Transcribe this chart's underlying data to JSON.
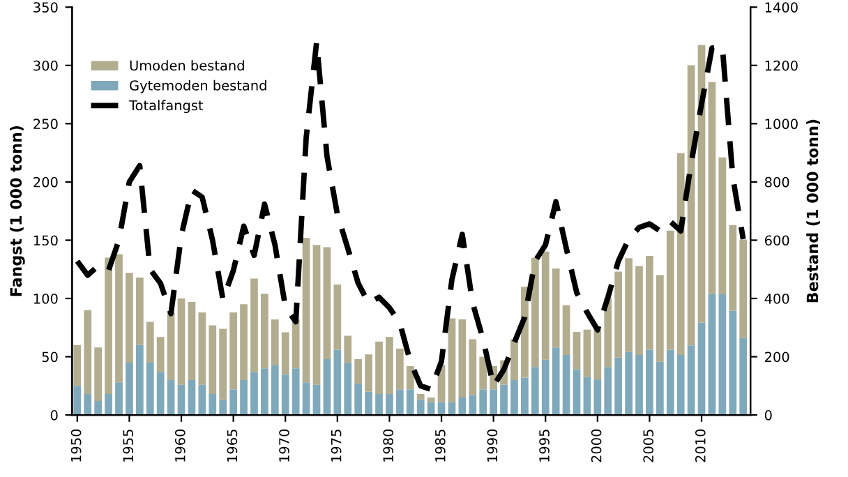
{
  "chart_data": {
    "type": "bar",
    "stacked": true,
    "ylabel": "Fangst (1 000 tonn)",
    "y2label": "Bestand (1 000 tonn)",
    "x": [
      1950,
      1951,
      1952,
      1953,
      1954,
      1955,
      1956,
      1957,
      1958,
      1959,
      1960,
      1961,
      1962,
      1963,
      1964,
      1965,
      1966,
      1967,
      1968,
      1969,
      1970,
      1971,
      1972,
      1973,
      1974,
      1975,
      1976,
      1977,
      1978,
      1979,
      1980,
      1981,
      1982,
      1983,
      1984,
      1985,
      1986,
      1987,
      1988,
      1989,
      1990,
      1991,
      1992,
      1993,
      1994,
      1995,
      1996,
      1997,
      1998,
      1999,
      2000,
      2001,
      2002,
      2003,
      2004,
      2005,
      2006,
      2007,
      2008,
      2009,
      2010,
      2011,
      2012,
      2013,
      2014
    ],
    "xlim": [
      1949.5,
      2014.7
    ],
    "xticks": [
      1950,
      1955,
      1960,
      1965,
      1970,
      1975,
      1980,
      1985,
      1990,
      1995,
      2000,
      2005,
      2010
    ],
    "ylim": [
      0,
      350
    ],
    "yticks": [
      0,
      50,
      100,
      150,
      200,
      250,
      300,
      350
    ],
    "y2lim": [
      0,
      1400
    ],
    "y2ticks": [
      0,
      200,
      400,
      600,
      800,
      1000,
      1200,
      1400
    ],
    "legend": "top left",
    "grid": false,
    "series": [
      {
        "name": "Gytemoden bestand",
        "color": "#7fa9ba",
        "axis": "y2",
        "values": [
          100,
          72,
          48,
          72,
          112,
          180,
          240,
          180,
          148,
          120,
          104,
          120,
          104,
          72,
          52,
          88,
          120,
          148,
          160,
          172,
          140,
          160,
          112,
          104,
          192,
          224,
          180,
          108,
          80,
          72,
          72,
          88,
          88,
          52,
          44,
          44,
          44,
          60,
          68,
          88,
          88,
          104,
          120,
          128,
          165,
          190,
          232,
          206,
          157,
          130,
          122,
          165,
          197,
          216,
          206,
          224,
          183,
          224,
          206,
          239,
          317,
          416,
          416,
          358,
          264
        ]
      },
      {
        "name": "Umoden bestand",
        "color": "#b2ad8f",
        "axis": "y2",
        "values": [
          140,
          288,
          184,
          468,
          440,
          308,
          232,
          140,
          120,
          232,
          296,
          268,
          248,
          236,
          244,
          264,
          260,
          320,
          256,
          156,
          144,
          168,
          496,
          480,
          384,
          224,
          92,
          84,
          128,
          180,
          196,
          140,
          80,
          20,
          16,
          128,
          288,
          268,
          192,
          112,
          80,
          84,
          140,
          312,
          375,
          371,
          271,
          171,
          128,
          163,
          171,
          236,
          295,
          322,
          305,
          322,
          297,
          409,
          693,
          962,
          953,
          727,
          468,
          294,
          338
        ]
      },
      {
        "name": "Totalfangst",
        "type": "line",
        "color": "#000000",
        "axis": "y",
        "line_style": "dashed",
        "values": [
          132,
          120,
          128,
          124,
          150,
          200,
          214,
          125,
          113,
          87,
          154,
          193,
          187,
          150,
          99,
          124,
          162,
          137,
          181,
          146,
          93,
          80,
          238,
          320,
          222,
          172,
          143,
          113,
          96,
          101,
          92,
          79,
          46,
          25,
          22,
          46,
          116,
          155,
          96,
          65,
          25,
          39,
          62,
          84,
          132,
          146,
          183,
          143,
          105,
          88,
          73,
          101,
          132,
          151,
          161,
          164,
          158,
          166,
          158,
          216,
          267,
          315,
          316,
          204,
          151
        ]
      }
    ]
  }
}
